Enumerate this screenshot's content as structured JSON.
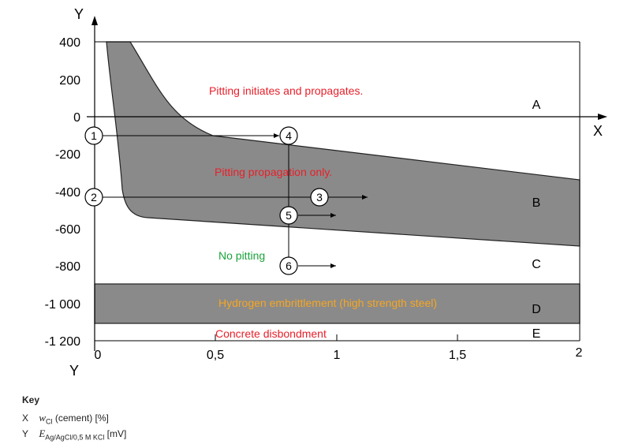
{
  "axes": {
    "x_name": "X",
    "y_name": "Y",
    "x_ticks": [
      "0",
      "0,5",
      "1",
      "1,5",
      "2"
    ],
    "y_ticks": [
      "400",
      "200",
      "0",
      "-200",
      "-400",
      "-600",
      "-800",
      "-1 000",
      "-1 200"
    ]
  },
  "zones": {
    "A": "A",
    "B": "B",
    "C": "C",
    "D": "D",
    "E": "E"
  },
  "labels": {
    "pitting_initiates": "Pitting initiates and propagates.",
    "pitting_propagation": "Pitting propagation only.",
    "no_pitting": "No pitting",
    "hydrogen": "Hydrogen embrittlement (high strength steel)",
    "concrete": "Concrete disbondment"
  },
  "markers": [
    "1",
    "2",
    "3",
    "4",
    "5",
    "6"
  ],
  "key": {
    "title": "Key",
    "x_letter": "X",
    "x_symbol": "w",
    "x_sub": "Cl",
    "x_rest": " (cement) [%]",
    "y_letter": "Y",
    "y_symbol": "E",
    "y_sub": "Ag/AgCl/0,5 M KCl",
    "y_rest": " [mV]"
  },
  "colors": {
    "band_fill": "#8a8a8a",
    "red_text": "#e8202a",
    "green_text": "#1aa33a",
    "orange_text": "#f5a623"
  },
  "chart_data": {
    "type": "diagram",
    "xlim": [
      0,
      2
    ],
    "ylim": [
      -1200,
      400
    ],
    "pitting_band_upper": [
      [
        0.15,
        400
      ],
      [
        0.35,
        -50
      ],
      [
        0.5,
        -110
      ],
      [
        2,
        -340
      ]
    ],
    "pitting_band_lower": [
      [
        0.05,
        400
      ],
      [
        0.12,
        -420
      ],
      [
        0.22,
        -540
      ],
      [
        2,
        -690
      ]
    ],
    "hydrogen_band": [
      -1100,
      -900
    ],
    "concrete_limit": -1200
  }
}
